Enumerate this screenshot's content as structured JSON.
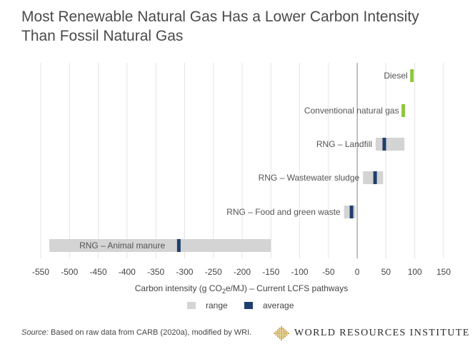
{
  "title": {
    "line1": "Most Renewable Natural Gas Has a Lower Carbon Intensity",
    "line2": "Than Fossil Natural Gas"
  },
  "source": {
    "label": "Source:",
    "text": " Based on raw data from CARB (2020a), modified by WRI."
  },
  "logo": {
    "text": "WORLD RESOURCES INSTITUTE",
    "color": "#c9a23a"
  },
  "legend": {
    "range_label": "range",
    "average_label": "average",
    "position": "bottom"
  },
  "colors": {
    "range": "#d4d4d4",
    "average": "#1f3f6e",
    "fossil": "#8dc63f",
    "grid": "#e4e4e4",
    "zero_line": "#9a9a9a"
  },
  "chart_data": {
    "type": "bar",
    "orientation": "horizontal",
    "xlabel": "Carbon intensity (g CO2e/MJ) – Current LCFS pathways",
    "xlabel_parts": [
      "Carbon intensity (g CO",
      "2",
      "e/MJ) – Current LCFS pathways"
    ],
    "xlim": [
      -550,
      150
    ],
    "xticks": [
      -550,
      -500,
      -450,
      -400,
      -350,
      -300,
      -250,
      -200,
      -150,
      -100,
      -50,
      0,
      50,
      100,
      150
    ],
    "grid": true,
    "categories": [
      {
        "label": "Diesel",
        "range": null,
        "value": 95,
        "kind": "fossil"
      },
      {
        "label": "Conventional natural gas",
        "range": null,
        "value": 80,
        "kind": "fossil"
      },
      {
        "label": "RNG – Landfill",
        "range": [
          32,
          82
        ],
        "value": 47,
        "kind": "rng"
      },
      {
        "label": "RNG – Wastewater sludge",
        "range": [
          10,
          45
        ],
        "value": 31,
        "kind": "rng"
      },
      {
        "label": "RNG – Food and green waste",
        "range": [
          -23,
          -3
        ],
        "value": -10,
        "kind": "rng"
      },
      {
        "label": "RNG – Animal manure",
        "range": [
          -535,
          -150
        ],
        "value": -310,
        "kind": "rng"
      }
    ]
  }
}
